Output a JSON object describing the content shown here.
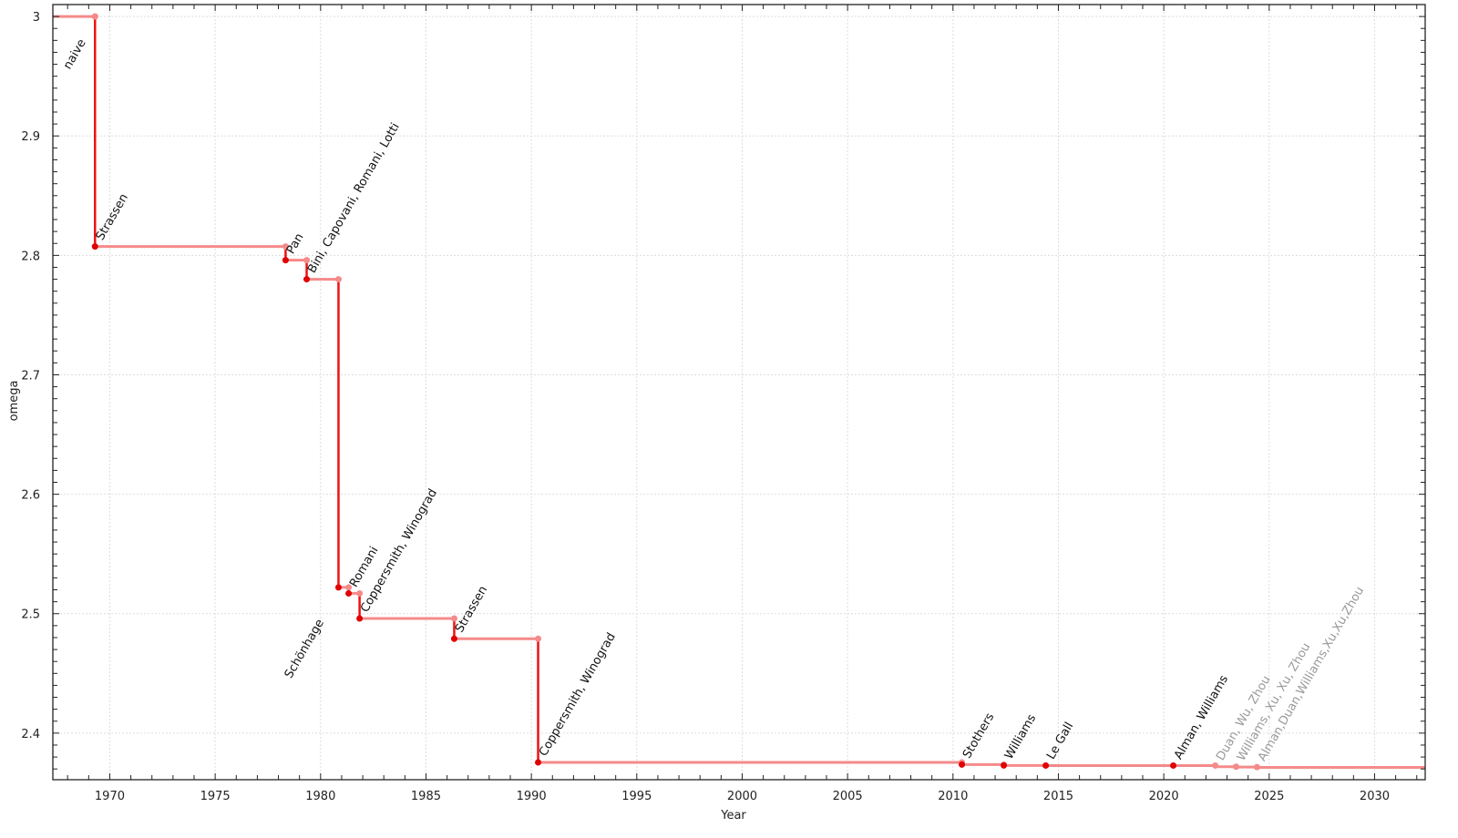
{
  "chart_data": {
    "type": "line",
    "step": true,
    "xlabel": "Year",
    "ylabel": "omega",
    "xlim": [
      1967.3,
      2032.4
    ],
    "ylim": [
      2.361,
      3.01
    ],
    "xticks": [
      "1970",
      "1975",
      "1980",
      "1985",
      "1990",
      "1995",
      "2000",
      "2005",
      "2010",
      "2015",
      "2020",
      "2025",
      "2030"
    ],
    "yticks": [
      "2.4",
      "2.5",
      "2.6",
      "2.7",
      "2.8",
      "2.9",
      "3"
    ],
    "grid": true,
    "colors": {
      "step_line": "#ee1111",
      "level_line": "#f58a8a",
      "confirmed_point": "#e00000",
      "previous_point": "#f58a8a",
      "label": "#111111",
      "label_muted": "#999999",
      "grid": "#dddddd"
    },
    "records": [
      {
        "label": "naive",
        "year": 1969.3,
        "omega": 3.0,
        "muted": false,
        "label_position": "below"
      },
      {
        "label": "Strassen",
        "year": 1969.3,
        "omega": 2.8074,
        "muted": false,
        "label_position": "above"
      },
      {
        "label": "Pan",
        "year": 1978.34,
        "omega": 2.796,
        "muted": false,
        "label_position": "above"
      },
      {
        "label": "Bini, Capovani, Romani, Lotti",
        "year": 1979.34,
        "omega": 2.78,
        "muted": false,
        "label_position": "above"
      },
      {
        "label": "Schönhage",
        "year": 1980.85,
        "omega": 2.522,
        "muted": false,
        "label_position": "below"
      },
      {
        "label": "Romani",
        "year": 1981.33,
        "omega": 2.517,
        "muted": false,
        "label_position": "above"
      },
      {
        "label": "Coppersmith, Winograd",
        "year": 1981.85,
        "omega": 2.496,
        "muted": false,
        "label_position": "above"
      },
      {
        "label": "Strassen",
        "year": 1986.34,
        "omega": 2.479,
        "muted": false,
        "label_position": "above"
      },
      {
        "label": "Coppersmith, Winograd",
        "year": 1990.32,
        "omega": 2.3755,
        "muted": false,
        "label_position": "above"
      },
      {
        "label": "Stothers",
        "year": 2010.42,
        "omega": 2.3737,
        "muted": false,
        "label_position": "above"
      },
      {
        "label": "Williams",
        "year": 2012.41,
        "omega": 2.3729,
        "muted": false,
        "label_position": "above"
      },
      {
        "label": "Le Gall",
        "year": 2014.4,
        "omega": 2.3728639,
        "muted": false,
        "label_position": "above"
      },
      {
        "label": "Alman, Williams",
        "year": 2020.45,
        "omega": 2.3728596,
        "muted": false,
        "label_position": "above"
      },
      {
        "label": "Duan, Wu, Zhou",
        "year": 2022.44,
        "omega": 2.371866,
        "muted": true,
        "label_position": "above"
      },
      {
        "label": "Williams, Xu, Xu, Zhou",
        "year": 2023.43,
        "omega": 2.371552,
        "muted": true,
        "label_position": "above"
      },
      {
        "label": "Alman,Duan,Williams,Xu,Xu,Zhou",
        "year": 2024.42,
        "omega": 2.371339,
        "muted": true,
        "label_position": "above"
      }
    ]
  }
}
